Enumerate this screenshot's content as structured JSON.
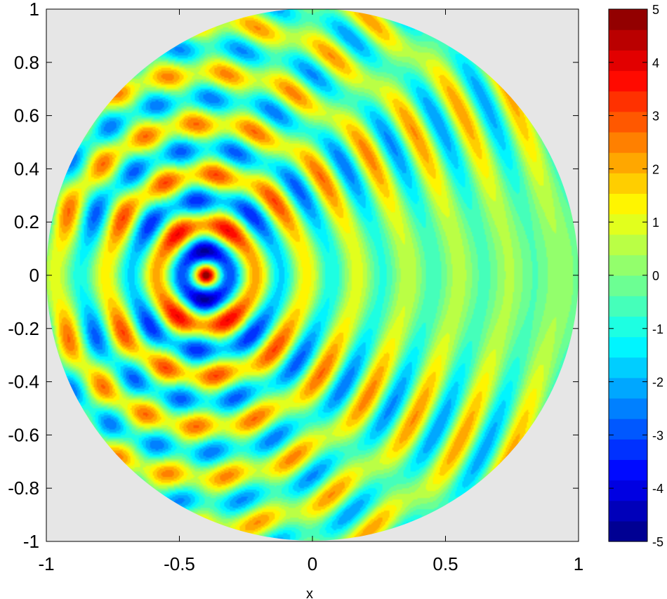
{
  "chart_data": {
    "type": "heatmap",
    "subtype": "filled-contour",
    "title": "",
    "xlabel": "x",
    "ylabel": "",
    "xlim": [
      -1,
      1
    ],
    "ylim": [
      -1,
      1
    ],
    "x_ticks": [
      "-1",
      "-0.5",
      "0",
      "0.5",
      "1"
    ],
    "x_tick_values": [
      -1,
      -0.5,
      0,
      0.5,
      1
    ],
    "y_ticks": [
      "1",
      "0.8",
      "0.6",
      "0.4",
      "0.2",
      "0",
      "-0.2",
      "-0.4",
      "-0.6",
      "-0.8",
      "-1"
    ],
    "y_tick_values": [
      1,
      0.8,
      0.6,
      0.4,
      0.2,
      0,
      -0.2,
      -0.4,
      -0.6,
      -0.8,
      -1
    ],
    "grid": false,
    "domain": "disk of radius 1 centered at (0, 0)",
    "outside_domain_color": "#e6e6e6",
    "source_point": [
      -0.4,
      0.0
    ],
    "colorbar": {
      "range": [
        -5,
        5
      ],
      "ticks": [
        "5",
        "4",
        "3",
        "2",
        "1",
        "0",
        "-1",
        "-2",
        "-3",
        "-4",
        "-5"
      ],
      "tick_values": [
        5,
        4,
        3,
        2,
        1,
        0,
        -1,
        -2,
        -3,
        -4,
        -5
      ],
      "levels": 26,
      "colormap": "jet"
    }
  }
}
